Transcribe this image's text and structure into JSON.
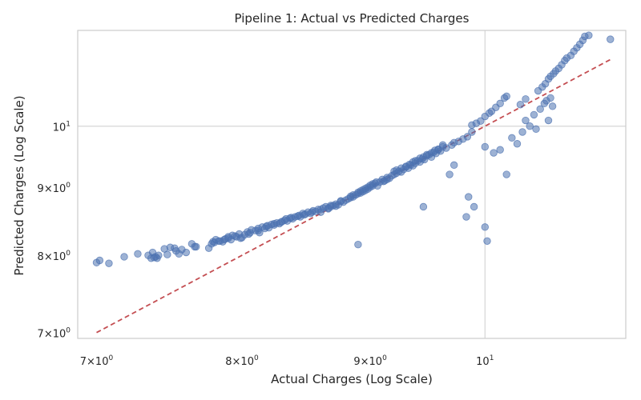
{
  "chart_data": {
    "type": "scatter",
    "title": "Pipeline 1: Actual vs Predicted Charges",
    "xlabel": "Actual Charges (Log Scale)",
    "ylabel": "Predicted Charges (Log Scale)",
    "xscale": "log",
    "yscale": "log",
    "xlim": [
      6.88,
      11.38
    ],
    "ylim": [
      6.93,
      11.8
    ],
    "grid": true,
    "x_ticks": [
      {
        "value": 7,
        "base": "7",
        "exp": "0"
      },
      {
        "value": 8,
        "base": "8",
        "exp": "0"
      },
      {
        "value": 9,
        "base": "9",
        "exp": "0"
      },
      {
        "value": 10,
        "base": "10",
        "exp": "1"
      }
    ],
    "y_ticks": [
      {
        "value": 7,
        "base": "7",
        "exp": "0"
      },
      {
        "value": 8,
        "base": "8",
        "exp": "0"
      },
      {
        "value": 9,
        "base": "9",
        "exp": "0"
      },
      {
        "value": 10,
        "base": "10",
        "exp": "1"
      }
    ],
    "tick_sep": "×",
    "reference_line": {
      "style": "dashed",
      "color": "#c44e52",
      "x": [
        7.0,
        11.22
      ],
      "y": [
        7.0,
        11.22
      ]
    },
    "point_color": "#4c72b0",
    "points": [
      [
        7.0,
        7.9
      ],
      [
        7.02,
        7.93
      ],
      [
        7.08,
        7.89
      ],
      [
        7.18,
        7.98
      ],
      [
        7.27,
        8.02
      ],
      [
        7.34,
        8.0
      ],
      [
        7.36,
        7.96
      ],
      [
        7.37,
        8.04
      ],
      [
        7.38,
        7.97
      ],
      [
        7.39,
        7.98
      ],
      [
        7.4,
        7.96
      ],
      [
        7.41,
        8.0
      ],
      [
        7.45,
        8.09
      ],
      [
        7.47,
        8.01
      ],
      [
        7.49,
        8.11
      ],
      [
        7.52,
        8.1
      ],
      [
        7.53,
        8.06
      ],
      [
        7.55,
        8.02
      ],
      [
        7.57,
        8.08
      ],
      [
        7.6,
        8.04
      ],
      [
        7.64,
        8.16
      ],
      [
        7.66,
        8.12
      ],
      [
        7.67,
        8.12
      ],
      [
        7.76,
        8.1
      ],
      [
        7.78,
        8.16
      ],
      [
        7.79,
        8.19
      ],
      [
        7.8,
        8.18
      ],
      [
        7.81,
        8.22
      ],
      [
        7.84,
        8.2
      ],
      [
        7.86,
        8.19
      ],
      [
        7.88,
        8.23
      ],
      [
        7.9,
        8.24
      ],
      [
        7.92,
        8.22
      ],
      [
        7.95,
        8.27
      ],
      [
        7.96,
        8.26
      ],
      [
        7.98,
        8.3
      ],
      [
        8.0,
        8.25
      ],
      [
        8.02,
        8.29
      ],
      [
        8.04,
        8.33
      ],
      [
        8.06,
        8.32
      ],
      [
        8.07,
        8.36
      ],
      [
        8.1,
        8.35
      ],
      [
        8.12,
        8.38
      ],
      [
        8.13,
        8.32
      ],
      [
        8.15,
        8.4
      ],
      [
        8.17,
        8.38
      ],
      [
        8.19,
        8.42
      ],
      [
        8.2,
        8.39
      ],
      [
        8.22,
        8.44
      ],
      [
        8.24,
        8.43
      ],
      [
        8.26,
        8.46
      ],
      [
        8.28,
        8.45
      ],
      [
        8.3,
        8.48
      ],
      [
        8.32,
        8.5
      ],
      [
        8.34,
        8.49
      ],
      [
        8.36,
        8.53
      ],
      [
        8.38,
        8.52
      ],
      [
        8.4,
        8.55
      ],
      [
        8.42,
        8.56
      ],
      [
        8.44,
        8.55
      ],
      [
        8.46,
        8.6
      ],
      [
        8.48,
        8.59
      ],
      [
        8.5,
        8.62
      ],
      [
        8.52,
        8.6
      ],
      [
        8.54,
        8.64
      ],
      [
        8.56,
        8.63
      ],
      [
        8.58,
        8.66
      ],
      [
        8.6,
        8.66
      ],
      [
        8.62,
        8.68
      ],
      [
        8.64,
        8.7
      ],
      [
        8.66,
        8.68
      ],
      [
        8.68,
        8.72
      ],
      [
        8.7,
        8.72
      ],
      [
        8.72,
        8.74
      ],
      [
        8.74,
        8.73
      ],
      [
        8.76,
        8.78
      ],
      [
        8.78,
        8.77
      ],
      [
        8.8,
        8.8
      ],
      [
        8.82,
        8.82
      ],
      [
        8.84,
        8.84
      ],
      [
        8.86,
        8.85
      ],
      [
        8.88,
        8.88
      ],
      [
        8.9,
        8.9
      ],
      [
        8.92,
        8.91
      ],
      [
        8.94,
        8.93
      ],
      [
        8.96,
        8.95
      ],
      [
        8.98,
        8.97
      ],
      [
        9.0,
        9.0
      ],
      [
        9.02,
        9.02
      ],
      [
        9.04,
        9.06
      ],
      [
        9.06,
        9.02
      ],
      [
        9.08,
        9.08
      ],
      [
        9.1,
        9.12
      ],
      [
        9.12,
        9.1
      ],
      [
        9.14,
        9.15
      ],
      [
        9.16,
        9.14
      ],
      [
        9.18,
        9.18
      ],
      [
        9.2,
        9.2
      ],
      [
        9.22,
        9.22
      ],
      [
        9.24,
        9.25
      ],
      [
        9.26,
        9.24
      ],
      [
        9.28,
        9.28
      ],
      [
        9.3,
        9.32
      ],
      [
        9.32,
        9.3
      ],
      [
        9.34,
        9.35
      ],
      [
        9.36,
        9.34
      ],
      [
        9.38,
        9.38
      ],
      [
        9.4,
        9.42
      ],
      [
        9.42,
        9.4
      ],
      [
        9.44,
        9.45
      ],
      [
        9.46,
        9.44
      ],
      [
        9.48,
        9.5
      ],
      [
        9.5,
        9.52
      ],
      [
        9.52,
        9.48
      ],
      [
        9.54,
        9.56
      ],
      [
        9.56,
        9.54
      ],
      [
        9.58,
        9.6
      ],
      [
        9.6,
        9.58
      ],
      [
        9.62,
        9.65
      ],
      [
        9.65,
        9.63
      ],
      [
        9.7,
        9.68
      ],
      [
        9.72,
        9.72
      ],
      [
        9.76,
        9.74
      ],
      [
        9.8,
        9.78
      ],
      [
        9.84,
        9.82
      ],
      [
        9.88,
        9.9
      ],
      [
        9.88,
        10.02
      ],
      [
        9.92,
        10.05
      ],
      [
        9.96,
        10.09
      ],
      [
        10.0,
        10.17
      ],
      [
        10.04,
        10.23
      ],
      [
        10.06,
        10.26
      ],
      [
        10.1,
        10.33
      ],
      [
        10.14,
        10.4
      ],
      [
        10.18,
        10.5
      ],
      [
        10.2,
        10.53
      ],
      [
        10.33,
        10.38
      ],
      [
        10.38,
        10.48
      ],
      [
        10.5,
        10.63
      ],
      [
        10.54,
        10.7
      ],
      [
        10.57,
        10.76
      ],
      [
        10.6,
        10.85
      ],
      [
        10.62,
        10.9
      ],
      [
        10.65,
        10.95
      ],
      [
        10.67,
        11.0
      ],
      [
        10.7,
        11.05
      ],
      [
        10.73,
        11.12
      ],
      [
        10.76,
        11.2
      ],
      [
        10.78,
        11.25
      ],
      [
        10.82,
        11.3
      ],
      [
        10.85,
        11.38
      ],
      [
        10.88,
        11.45
      ],
      [
        10.91,
        11.52
      ],
      [
        10.94,
        11.6
      ],
      [
        10.96,
        11.68
      ],
      [
        11.0,
        11.7
      ],
      [
        11.22,
        11.62
      ],
      [
        9.0,
        9.03
      ],
      [
        9.02,
        9.05
      ],
      [
        9.05,
        9.08
      ],
      [
        9.11,
        9.09
      ],
      [
        9.14,
        9.12
      ],
      [
        9.2,
        9.25
      ],
      [
        9.22,
        9.27
      ],
      [
        9.26,
        9.3
      ],
      [
        9.3,
        9.33
      ],
      [
        9.33,
        9.36
      ],
      [
        9.36,
        9.4
      ],
      [
        9.38,
        9.42
      ],
      [
        9.42,
        9.46
      ],
      [
        9.45,
        9.48
      ],
      [
        9.48,
        9.52
      ],
      [
        9.52,
        9.55
      ],
      [
        9.55,
        9.59
      ],
      [
        9.58,
        9.61
      ],
      [
        9.62,
        9.68
      ],
      [
        8.6,
        8.62
      ],
      [
        8.66,
        8.67
      ],
      [
        8.68,
        8.7
      ],
      [
        8.72,
        8.71
      ],
      [
        8.76,
        8.79
      ],
      [
        8.84,
        8.86
      ],
      [
        8.86,
        8.88
      ],
      [
        8.9,
        8.92
      ],
      [
        8.92,
        8.94
      ],
      [
        8.94,
        8.96
      ],
      [
        8.96,
        8.98
      ],
      [
        8.98,
        9.0
      ],
      [
        7.83,
        8.2
      ],
      [
        7.87,
        8.22
      ],
      [
        7.9,
        8.26
      ],
      [
        7.93,
        8.28
      ],
      [
        7.99,
        8.24
      ],
      [
        8.05,
        8.3
      ],
      [
        8.12,
        8.35
      ],
      [
        8.18,
        8.41
      ],
      [
        8.24,
        8.45
      ],
      [
        8.29,
        8.47
      ],
      [
        8.33,
        8.52
      ],
      [
        8.37,
        8.54
      ],
      [
        8.43,
        8.57
      ],
      [
        8.47,
        8.58
      ],
      [
        8.53,
        8.62
      ],
      [
        9.72,
        9.35
      ],
      [
        9.68,
        9.2
      ],
      [
        9.85,
        8.85
      ],
      [
        9.9,
        8.7
      ],
      [
        9.83,
        8.55
      ],
      [
        9.45,
        8.7
      ],
      [
        10.0,
        8.4
      ],
      [
        10.02,
        8.2
      ],
      [
        8.9,
        8.15
      ],
      [
        10.0,
        9.65
      ],
      [
        10.08,
        9.55
      ],
      [
        10.14,
        9.6
      ],
      [
        10.2,
        9.2
      ],
      [
        10.25,
        9.8
      ],
      [
        10.3,
        9.7
      ],
      [
        10.35,
        9.9
      ],
      [
        10.38,
        10.1
      ],
      [
        10.42,
        10.0
      ],
      [
        10.46,
        10.2
      ],
      [
        10.48,
        9.95
      ],
      [
        10.52,
        10.3
      ],
      [
        10.56,
        10.4
      ],
      [
        10.58,
        10.45
      ],
      [
        10.6,
        10.1
      ],
      [
        10.62,
        10.5
      ],
      [
        10.64,
        10.35
      ]
    ]
  }
}
